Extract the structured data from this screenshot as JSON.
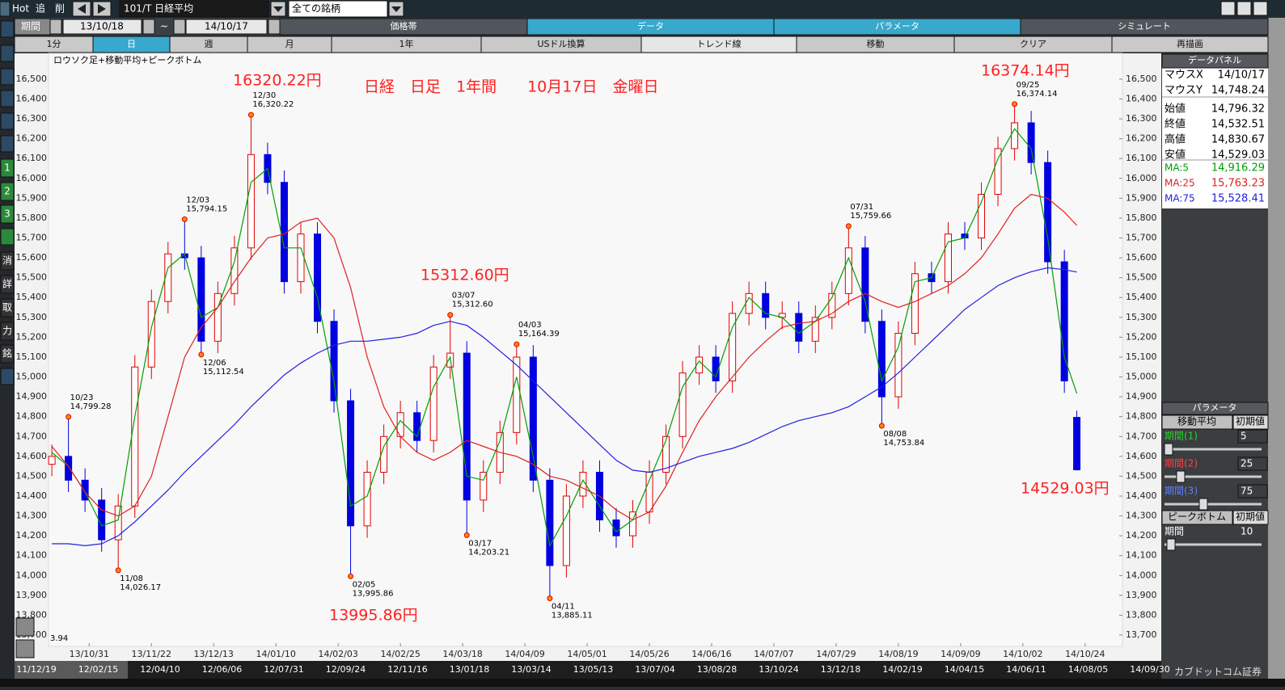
{
  "toolbar": {
    "hot": "Hot",
    "add": "追",
    "del": "削",
    "symbol": "101/T 日経平均",
    "universe": "全ての銘柄"
  },
  "period": {
    "label": "期間",
    "from": "13/10/18",
    "sep": "~",
    "to": "14/10/17"
  },
  "tabs": [
    "価格帯",
    "データ",
    "パラメータ",
    "シミュレート"
  ],
  "buttons": [
    "1分",
    "日",
    "週",
    "月",
    "1年",
    "USドル換算",
    "トレンド線",
    "移動",
    "クリア",
    "再描画"
  ],
  "side_tools": [
    "1",
    "2",
    "3",
    "消",
    "詳",
    "取",
    "力",
    "銘"
  ],
  "chart_data": {
    "type": "candlestick",
    "title": "ロウソク足+移動平均+ピークボトム",
    "annotations": [
      "16320.22円",
      "日経　日足　1年間　　10月17日　金曜日",
      "16374.14円",
      "15312.60円",
      "13995.86円",
      "14529.03円"
    ],
    "corner_text": "3.94",
    "up_color": "#e00000",
    "down_color": "#0000e0",
    "grid": false,
    "xlim": [
      -0.8,
      258
    ],
    "ylim": [
      13643,
      16630
    ],
    "xticks": [
      {
        "value": 9,
        "label": "13/10/31"
      },
      {
        "value": 24,
        "label": "13/11/22"
      },
      {
        "value": 39,
        "label": "13/12/13"
      },
      {
        "value": 54,
        "label": "14/01/10"
      },
      {
        "value": 69,
        "label": "14/02/03"
      },
      {
        "value": 84,
        "label": "14/02/25"
      },
      {
        "value": 99,
        "label": "14/03/18"
      },
      {
        "value": 114,
        "label": "14/04/09"
      },
      {
        "value": 129,
        "label": "14/05/01"
      },
      {
        "value": 144,
        "label": "14/05/26"
      },
      {
        "value": 159,
        "label": "14/06/16"
      },
      {
        "value": 174,
        "label": "14/07/07"
      },
      {
        "value": 189,
        "label": "14/07/29"
      },
      {
        "value": 204,
        "label": "14/08/19"
      },
      {
        "value": 219,
        "label": "14/09/09"
      },
      {
        "value": 234,
        "label": "14/10/02"
      },
      {
        "value": 249,
        "label": "14/10/24"
      }
    ],
    "yticks": [
      {
        "value": 13700,
        "label": "13,700"
      },
      {
        "value": 13800,
        "label": "13,800"
      },
      {
        "value": 13900,
        "label": "13,900"
      },
      {
        "value": 14000,
        "label": "14,000"
      },
      {
        "value": 14100,
        "label": "14,100"
      },
      {
        "value": 14200,
        "label": "14,200"
      },
      {
        "value": 14300,
        "label": "14,300"
      },
      {
        "value": 14400,
        "label": "14,400"
      },
      {
        "value": 14500,
        "label": "14,500"
      },
      {
        "value": 14600,
        "label": "14,600"
      },
      {
        "value": 14700,
        "label": "14,700"
      },
      {
        "value": 14800,
        "label": "14,800"
      },
      {
        "value": 14900,
        "label": "14,900"
      },
      {
        "value": 15000,
        "label": "15,000"
      },
      {
        "value": 15100,
        "label": "15,100"
      },
      {
        "value": 15200,
        "label": "15,200"
      },
      {
        "value": 15300,
        "label": "15,300"
      },
      {
        "value": 15400,
        "label": "15,400"
      },
      {
        "value": 15500,
        "label": "15,500"
      },
      {
        "value": 15600,
        "label": "15,600"
      },
      {
        "value": 15700,
        "label": "15,700"
      },
      {
        "value": 15800,
        "label": "15,800"
      },
      {
        "value": 15900,
        "label": "15,900"
      },
      {
        "value": 16000,
        "label": "16,000"
      },
      {
        "value": 16100,
        "label": "16,100"
      },
      {
        "value": 16200,
        "label": "16,200"
      },
      {
        "value": 16300,
        "label": "16,300"
      },
      {
        "value": 16400,
        "label": "16,400"
      },
      {
        "value": 16500,
        "label": "16,500"
      }
    ],
    "x": [
      0,
      4,
      8,
      12,
      16,
      20,
      24,
      28,
      32,
      36,
      40,
      44,
      48,
      52,
      56,
      60,
      64,
      68,
      72,
      76,
      80,
      84,
      88,
      92,
      96,
      100,
      104,
      108,
      112,
      116,
      120,
      124,
      128,
      132,
      136,
      140,
      144,
      148,
      152,
      156,
      160,
      164,
      168,
      172,
      176,
      180,
      184,
      188,
      192,
      196,
      200,
      204,
      208,
      212,
      216,
      220,
      224,
      228,
      232,
      236,
      240,
      244,
      247
    ],
    "open": [
      14560,
      14600,
      14480,
      14380,
      14180,
      14350,
      15050,
      15380,
      15620,
      15600,
      15180,
      15420,
      15650,
      16120,
      15980,
      15480,
      15720,
      15280,
      14880,
      14250,
      14520,
      14700,
      14820,
      14680,
      15050,
      15120,
      14380,
      14520,
      14720,
      15100,
      14480,
      14050,
      14400,
      14520,
      14280,
      14200,
      14320,
      14520,
      14700,
      15020,
      15100,
      14980,
      15320,
      15420,
      15300,
      15320,
      15180,
      15300,
      15420,
      15650,
      15280,
      14900,
      15220,
      15520,
      15480,
      15720,
      15700,
      15920,
      16150,
      16280,
      16080,
      15580,
      14796.32
    ],
    "high": [
      14660,
      14799.28,
      14540,
      14440,
      14410,
      15110,
      15440,
      15680,
      15794.15,
      15660,
      15480,
      15710,
      16320.22,
      16180,
      16040,
      15780,
      15780,
      15340,
      14940,
      14580,
      14760,
      14880,
      14880,
      15110,
      15312.6,
      15180,
      14580,
      14780,
      15164.39,
      15160,
      14540,
      14460,
      14580,
      14580,
      14340,
      14380,
      14580,
      14760,
      15080,
      15160,
      15160,
      15380,
      15480,
      15480,
      15380,
      15380,
      15360,
      15480,
      15759.66,
      15710,
      15340,
      15280,
      15580,
      15580,
      15780,
      15780,
      15980,
      16210,
      16374.14,
      16340,
      16140,
      15640,
      14830.67
    ],
    "low": [
      14500,
      14420,
      14320,
      14120,
      14026.17,
      14290,
      14990,
      15320,
      15540,
      15112.54,
      15120,
      15360,
      15590,
      15920,
      15420,
      15420,
      15220,
      14820,
      13995.86,
      14190,
      14460,
      14640,
      14620,
      14620,
      14990,
      14203.21,
      14320,
      14460,
      14660,
      14420,
      13885.11,
      13990,
      14340,
      14220,
      14140,
      14140,
      14260,
      14460,
      14640,
      14960,
      14920,
      14920,
      15260,
      15240,
      15240,
      15120,
      15120,
      15240,
      15360,
      15220,
      14753.84,
      14840,
      15160,
      15420,
      15420,
      15640,
      15640,
      15860,
      16090,
      16020,
      15520,
      14920,
      14529.03
    ],
    "close": [
      14600,
      14480,
      14380,
      14180,
      14350,
      15050,
      15380,
      15620,
      15600,
      15180,
      15420,
      15650,
      16120,
      15980,
      15480,
      15720,
      15280,
      14880,
      14250,
      14520,
      14700,
      14820,
      14680,
      15050,
      15120,
      14380,
      14520,
      14720,
      15100,
      14480,
      14050,
      14400,
      14520,
      14280,
      14200,
      14320,
      14520,
      14700,
      15020,
      15100,
      14980,
      15320,
      15420,
      15300,
      15320,
      15180,
      15300,
      15420,
      15650,
      15280,
      14900,
      15220,
      15520,
      15480,
      15720,
      15700,
      15920,
      16150,
      16280,
      16080,
      15580,
      14980,
      14532.51
    ],
    "series": [
      {
        "name": "MA:5",
        "color": "#00a000",
        "values": [
          14620,
          14550,
          14420,
          14250,
          14280,
          14800,
          15250,
          15550,
          15620,
          15300,
          15350,
          15580,
          15980,
          16050,
          15650,
          15650,
          15400,
          14980,
          14350,
          14400,
          14650,
          14780,
          14700,
          14950,
          15100,
          14500,
          14480,
          14680,
          15000,
          14600,
          14150,
          14300,
          14480,
          14350,
          14220,
          14280,
          14480,
          14680,
          14950,
          15080,
          15000,
          15250,
          15400,
          15320,
          15300,
          15220,
          15280,
          15400,
          15600,
          15380,
          14980,
          15150,
          15480,
          15500,
          15680,
          15700,
          15880,
          16100,
          16250,
          16150,
          15700,
          15100,
          14916.29
        ]
      },
      {
        "name": "MA:25",
        "color": "#e02020",
        "values": [
          14650,
          14550,
          14420,
          14330,
          14300,
          14350,
          14500,
          14800,
          15100,
          15250,
          15350,
          15480,
          15600,
          15700,
          15720,
          15780,
          15800,
          15700,
          15450,
          15100,
          14850,
          14700,
          14620,
          14580,
          14620,
          14680,
          14650,
          14620,
          14600,
          14560,
          14500,
          14480,
          14440,
          14400,
          14330,
          14280,
          14320,
          14450,
          14620,
          14780,
          14900,
          15000,
          15100,
          15180,
          15250,
          15270,
          15280,
          15320,
          15380,
          15420,
          15380,
          15350,
          15380,
          15420,
          15460,
          15520,
          15600,
          15720,
          15850,
          15920,
          15900,
          15830,
          15763.23
        ]
      },
      {
        "name": "MA:75",
        "color": "#2020e0",
        "values": [
          14160,
          14160,
          14150,
          14160,
          14200,
          14270,
          14350,
          14430,
          14520,
          14600,
          14680,
          14760,
          14850,
          14930,
          15010,
          15070,
          15120,
          15160,
          15180,
          15180,
          15190,
          15200,
          15220,
          15260,
          15280,
          15260,
          15200,
          15130,
          15060,
          14980,
          14900,
          14820,
          14740,
          14660,
          14580,
          14530,
          14520,
          14540,
          14570,
          14600,
          14620,
          14640,
          14670,
          14710,
          14750,
          14780,
          14800,
          14820,
          14850,
          14900,
          14950,
          15020,
          15100,
          15180,
          15260,
          15340,
          15400,
          15460,
          15500,
          15530,
          15550,
          15540,
          15528.41
        ]
      }
    ],
    "peaks": [
      {
        "x": 4,
        "date": "10/23",
        "value": 14799.28,
        "label": "14,799.28"
      },
      {
        "x": 16,
        "date": "11/08",
        "value": 14026.17,
        "label": "14,026.17"
      },
      {
        "x": 32,
        "date": "12/03",
        "value": 15794.15,
        "label": "15,794.15"
      },
      {
        "x": 36,
        "date": "12/06",
        "value": 15112.54,
        "label": "15,112.54"
      },
      {
        "x": 48,
        "date": "12/30",
        "value": 16320.22,
        "label": "16,320.22"
      },
      {
        "x": 72,
        "date": "02/05",
        "value": 13995.86,
        "label": "13,995.86"
      },
      {
        "x": 96,
        "date": "03/07",
        "value": 15312.6,
        "label": "15,312.60"
      },
      {
        "x": 100,
        "date": "03/17",
        "value": 14203.21,
        "label": "14,203.21"
      },
      {
        "x": 112,
        "date": "04/03",
        "value": 15164.39,
        "label": "15,164.39"
      },
      {
        "x": 120,
        "date": "04/11",
        "value": 13885.11,
        "label": "13,885.11"
      },
      {
        "x": 192,
        "date": "07/31",
        "value": 15759.66,
        "label": "15,759.66"
      },
      {
        "x": 200,
        "date": "08/08",
        "value": 14753.84,
        "label": "14,753.84"
      },
      {
        "x": 232,
        "date": "09/25",
        "value": 16374.14,
        "label": "16,374.14"
      }
    ]
  },
  "data_panel": {
    "title": "データパネル",
    "rows": [
      {
        "label": "マウスX",
        "value": "14/10/17"
      },
      {
        "label": "マウスY",
        "value": "14,748.24"
      },
      {
        "label": "始値",
        "value": "14,796.32"
      },
      {
        "label": "終値",
        "value": "14,532.51"
      },
      {
        "label": "高値",
        "value": "14,830.67"
      },
      {
        "label": "安値",
        "value": "14,529.03"
      }
    ],
    "ma_values": [
      "14,916.29",
      "15,763.23",
      "15,528.41"
    ]
  },
  "parameter_panel": {
    "title": "パラメータ",
    "ma_label": "移動平均",
    "reset": "初期値",
    "periods": [
      {
        "label": "期間(1)",
        "value": "5"
      },
      {
        "label": "期間(2)",
        "value": "25"
      },
      {
        "label": "期間(3)",
        "value": "75"
      }
    ],
    "peak_label": "ピークボトム",
    "peak_reset": "初期値",
    "peak_period_label": "期間",
    "peak_period": "10"
  },
  "scroll_labels": [
    "11/12/19",
    "12/02/15",
    "12/04/10",
    "12/06/06",
    "12/07/31",
    "12/09/24",
    "12/11/16",
    "13/01/18",
    "13/03/14",
    "13/05/13",
    "13/07/04",
    "13/08/28",
    "13/10/24",
    "13/12/18",
    "14/02/19",
    "14/04/15",
    "14/06/11",
    "14/08/05",
    "14/09/30"
  ],
  "broker": "カブドットコム証券"
}
